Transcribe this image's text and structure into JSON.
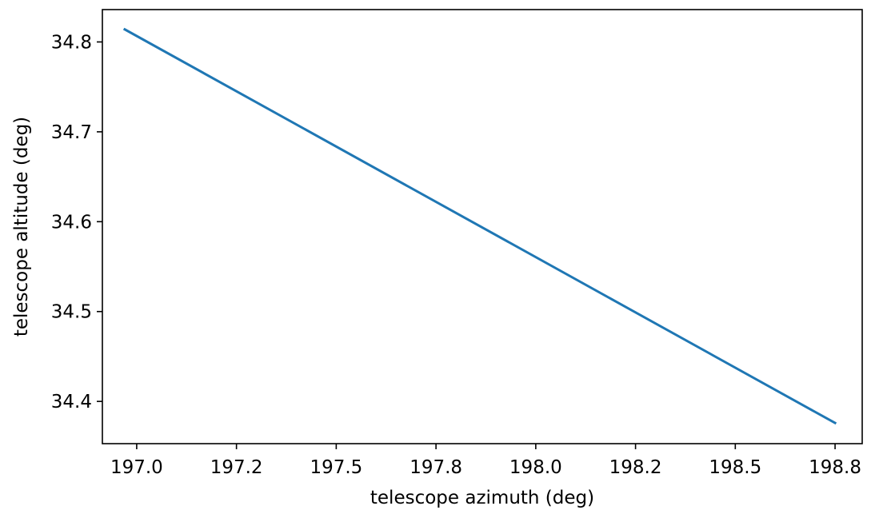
{
  "chart_data": {
    "type": "line",
    "title": "",
    "xlabel": "telescope azimuth (deg)",
    "ylabel": "telescope altitude (deg)",
    "xlim": [
      196.914,
      198.818
    ],
    "ylim": [
      34.353,
      34.836
    ],
    "x_ticks": [
      197.0,
      197.25,
      197.5,
      197.75,
      198.0,
      198.25,
      198.5,
      198.75
    ],
    "x_tick_labels": [
      "197.0",
      "197.2",
      "197.5",
      "197.8",
      "198.0",
      "198.2",
      "198.5",
      "198.8"
    ],
    "y_ticks": [
      34.4,
      34.5,
      34.6,
      34.7,
      34.8
    ],
    "y_tick_labels": [
      "34.4",
      "34.5",
      "34.6",
      "34.7",
      "34.8"
    ],
    "grid": false,
    "series": [
      {
        "color": "#1f77b4",
        "x": [
          196.97,
          198.75
        ],
        "y": [
          34.814,
          34.376
        ]
      }
    ]
  }
}
